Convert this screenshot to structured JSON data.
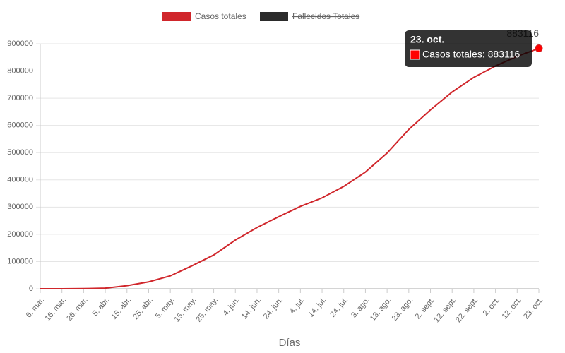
{
  "chart_data": {
    "type": "line",
    "x_label": "Días",
    "categories": [
      "6. mar.",
      "16. mar.",
      "26. mar.",
      "5. abr.",
      "15. abr.",
      "25. abr.",
      "5. may.",
      "15. may.",
      "25. may.",
      "4. jun.",
      "14. jun.",
      "24. jun.",
      "4. jul.",
      "14. jul.",
      "24. jul.",
      "3. ago.",
      "13. ago.",
      "23. ago.",
      "2. sept.",
      "12. sept.",
      "22. sept.",
      "2. oct.",
      "12. oct.",
      "23. oct."
    ],
    "series": [
      {
        "name": "Casos totales",
        "color": "#d0262b",
        "values": [
          1,
          86,
          580,
          2281,
          11475,
          25331,
          47372,
          84495,
          123979,
          178914,
          225132,
          264689,
          302718,
          333867,
          375961,
          428850,
          498555,
          585236,
          657129,
          722832,
          776546,
          818297,
          853974,
          883116
        ]
      },
      {
        "name": "Fallecidos Totales",
        "color": "#2b2b2b",
        "hidden": true
      }
    ],
    "ylim": [
      0,
      900000
    ],
    "yticks": [
      0,
      100000,
      200000,
      300000,
      400000,
      500000,
      600000,
      700000,
      800000,
      900000
    ],
    "grid": true,
    "legend": "top",
    "tooltip": {
      "title": "23. oct.",
      "label": "Casos totales: 883116"
    }
  }
}
